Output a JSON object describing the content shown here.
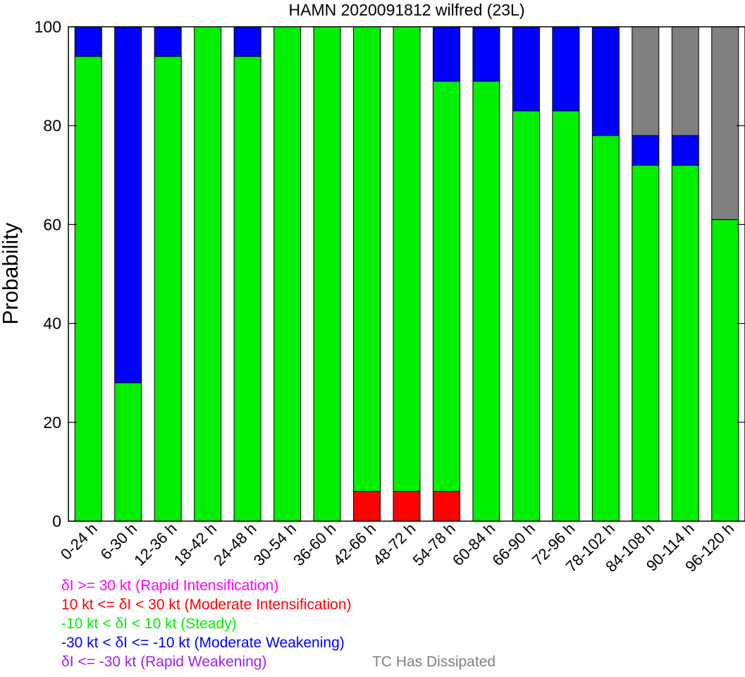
{
  "chart_data": {
    "type": "bar",
    "stacked": true,
    "title": "HAMN 2020091812 wilfred (23L)",
    "xlabel": "",
    "ylabel": "Probability",
    "ylim": [
      0,
      100
    ],
    "yticks": [
      0,
      20,
      40,
      60,
      80,
      100
    ],
    "grid": false,
    "categories": [
      "0-24 h",
      "6-30 h",
      "12-36 h",
      "18-42 h",
      "24-48 h",
      "30-54 h",
      "36-60 h",
      "42-66 h",
      "48-72 h",
      "54-78 h",
      "60-84 h",
      "66-90 h",
      "72-96 h",
      "78-102 h",
      "84-108 h",
      "90-114 h",
      "96-120 h"
    ],
    "series": [
      {
        "name": "δI >= 30 kt (Rapid Intensification)",
        "color": "#ff00ff",
        "values": [
          0,
          0,
          0,
          0,
          0,
          0,
          0,
          0,
          0,
          0,
          0,
          0,
          0,
          0,
          0,
          0,
          0
        ]
      },
      {
        "name": "10 kt <= δI < 30 kt (Moderate Intensification)",
        "color": "#ff0000",
        "values": [
          0,
          0,
          0,
          0,
          0,
          0,
          0,
          6,
          6,
          6,
          0,
          0,
          0,
          0,
          0,
          0,
          0
        ]
      },
      {
        "name": "-10 kt < δI < 10 kt (Steady)",
        "color": "#00ee00",
        "values": [
          94,
          28,
          94,
          100,
          94,
          100,
          100,
          94,
          94,
          83,
          89,
          83,
          83,
          78,
          72,
          72,
          61
        ]
      },
      {
        "name": "-30 kt < δI <= -10 kt (Moderate Weakening)",
        "color": "#0000ff",
        "values": [
          6,
          72,
          6,
          0,
          6,
          0,
          0,
          0,
          0,
          11,
          11,
          17,
          17,
          22,
          6,
          6,
          0
        ]
      },
      {
        "name": "δI <= -30 kt (Rapid Weakening)",
        "color": "#a020f0",
        "values": [
          0,
          0,
          0,
          0,
          0,
          0,
          0,
          0,
          0,
          0,
          0,
          0,
          0,
          0,
          0,
          0,
          0
        ]
      },
      {
        "name": "TC Has Dissipated",
        "color": "#808080",
        "values": [
          0,
          0,
          0,
          0,
          0,
          0,
          0,
          0,
          0,
          0,
          0,
          0,
          0,
          0,
          22,
          22,
          39
        ]
      }
    ]
  }
}
